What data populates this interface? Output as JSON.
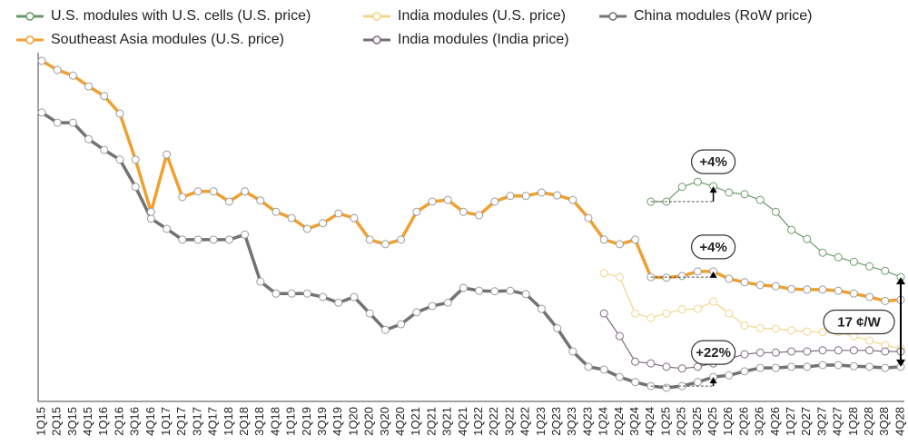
{
  "chart_data": {
    "type": "line",
    "categories": [
      "1Q15",
      "2Q15",
      "3Q15",
      "4Q15",
      "1Q16",
      "2Q16",
      "3Q16",
      "4Q16",
      "1Q17",
      "2Q17",
      "3Q17",
      "4Q17",
      "1Q18",
      "2Q18",
      "3Q18",
      "4Q18",
      "1Q19",
      "2Q19",
      "3Q19",
      "4Q19",
      "1Q20",
      "2Q20",
      "3Q20",
      "4Q20",
      "1Q21",
      "2Q21",
      "3Q21",
      "4Q21",
      "1Q22",
      "2Q22",
      "3Q22",
      "4Q22",
      "1Q23",
      "2Q23",
      "3Q23",
      "4Q23",
      "1Q24",
      "2Q24",
      "3Q24",
      "4Q24",
      "1Q25",
      "2Q25",
      "3Q25",
      "4Q25",
      "1Q26",
      "2Q26",
      "3Q26",
      "4Q26",
      "1Q27",
      "2Q27",
      "3Q27",
      "4Q27",
      "1Q28",
      "2Q28",
      "3Q28",
      "4Q28"
    ],
    "series": [
      {
        "name": "U.S. modules with U.S. cells (U.S. price)",
        "color": "#6a9a6a",
        "values": [
          null,
          null,
          null,
          null,
          null,
          null,
          null,
          null,
          null,
          null,
          null,
          null,
          null,
          null,
          null,
          null,
          null,
          null,
          null,
          null,
          null,
          null,
          null,
          null,
          null,
          null,
          null,
          null,
          null,
          null,
          null,
          null,
          null,
          null,
          null,
          null,
          null,
          null,
          null,
          45.2,
          45.2,
          47.8,
          48.7,
          47.9,
          46.8,
          46.5,
          45.5,
          43.4,
          40.2,
          38.6,
          36.2,
          35.4,
          34.6,
          33.8,
          33.0,
          31.9
        ]
      },
      {
        "name": "India modules (U.S. price)",
        "color": "#f2d589",
        "values": [
          null,
          null,
          null,
          null,
          null,
          null,
          null,
          null,
          null,
          null,
          null,
          null,
          null,
          null,
          null,
          null,
          null,
          null,
          null,
          null,
          null,
          null,
          null,
          null,
          null,
          null,
          null,
          null,
          null,
          null,
          null,
          null,
          null,
          null,
          null,
          null,
          32.6,
          31.9,
          25.5,
          24.7,
          25.5,
          26.2,
          26.3,
          27.6,
          25.5,
          23.4,
          22.9,
          22.8,
          22.5,
          22.3,
          22.2,
          22.2,
          21.5,
          20.7,
          19.9,
          19.3
        ]
      },
      {
        "name": "China modules (RoW price)",
        "color": "#737373",
        "values": [
          60.9,
          59.1,
          59.1,
          56.2,
          54.3,
          52.6,
          47.8,
          42.2,
          40.4,
          38.5,
          38.5,
          38.5,
          38.5,
          39.4,
          31.1,
          29.0,
          29.0,
          29.0,
          28.4,
          27.4,
          28.4,
          25.5,
          22.6,
          23.6,
          25.7,
          26.8,
          27.4,
          30.0,
          29.5,
          29.4,
          29.5,
          28.9,
          26.3,
          22.9,
          18.8,
          16.1,
          15.6,
          14.3,
          13.4,
          12.7,
          12.4,
          12.7,
          13.4,
          14.3,
          14.6,
          15.3,
          15.9,
          15.9,
          16.1,
          16.1,
          16.4,
          16.4,
          16.2,
          16.1,
          15.9,
          16.1
        ]
      },
      {
        "name": "Southeast Asia modules (U.S. price)",
        "color": "#f0a030",
        "values": [
          70.0,
          68.4,
          67.4,
          65.5,
          63.8,
          60.7,
          52.6,
          43.4,
          53.5,
          46.0,
          47.0,
          47.0,
          45.2,
          47.0,
          45.4,
          43.4,
          42.3,
          40.4,
          41.4,
          43.1,
          42.3,
          38.5,
          37.7,
          38.5,
          43.4,
          45.2,
          45.5,
          43.4,
          42.8,
          45.2,
          46.2,
          46.2,
          46.8,
          46.3,
          45.5,
          42.3,
          38.5,
          37.7,
          38.5,
          31.9,
          31.8,
          32.1,
          32.9,
          32.9,
          31.6,
          31.0,
          30.5,
          30.3,
          29.8,
          29.7,
          29.7,
          29.5,
          29.0,
          28.4,
          27.7,
          27.9
        ]
      },
      {
        "name": "India modules (India price)",
        "color": "#7d6b7d",
        "values": [
          null,
          null,
          null,
          null,
          null,
          null,
          null,
          null,
          null,
          null,
          null,
          null,
          null,
          null,
          null,
          null,
          null,
          null,
          null,
          null,
          null,
          null,
          null,
          null,
          null,
          null,
          null,
          null,
          null,
          null,
          null,
          null,
          null,
          null,
          null,
          null,
          25.5,
          21.5,
          17.0,
          16.7,
          16.1,
          15.8,
          16.1,
          16.7,
          17.5,
          18.3,
          18.6,
          18.6,
          18.8,
          18.8,
          19.0,
          19.0,
          19.0,
          19.0,
          18.8,
          18.8
        ]
      }
    ],
    "ylim": [
      10,
      70
    ],
    "annotations": [
      "+4%",
      "+4%",
      "+22%",
      "17 ¢/W"
    ]
  }
}
